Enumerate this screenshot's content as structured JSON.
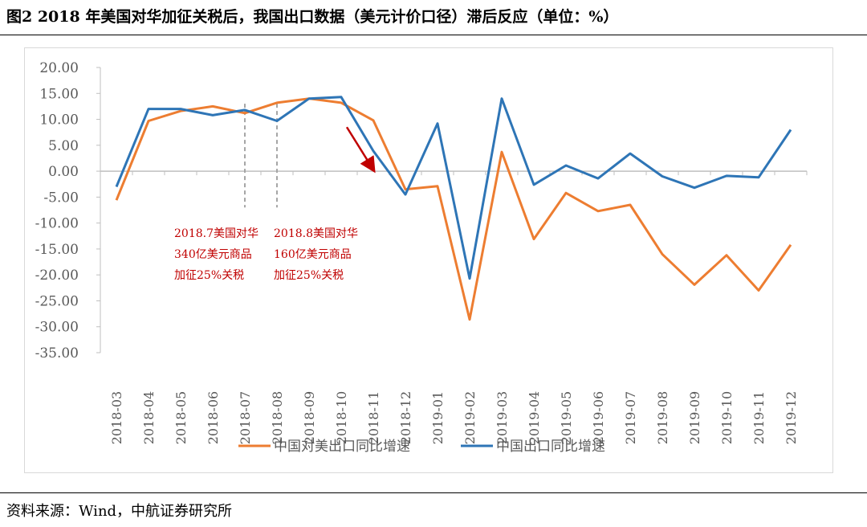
{
  "figure": {
    "title": "图2  2018 年美国对华加征关税后，我国出口数据（美元计价口径）滞后反应（单位：%）",
    "source": "资料来源：Wind，中航证券研究所"
  },
  "chart_data": {
    "type": "line",
    "categories": [
      "2018-03",
      "2018-04",
      "2018-05",
      "2018-06",
      "2018-07",
      "2018-08",
      "2018-09",
      "2018-10",
      "2018-11",
      "2018-12",
      "2019-01",
      "2019-02",
      "2019-03",
      "2019-04",
      "2019-05",
      "2019-06",
      "2019-07",
      "2019-08",
      "2019-09",
      "2019-10",
      "2019-11",
      "2019-12"
    ],
    "series": [
      {
        "name": "中国对美出口同比增速",
        "color": "#ED7D31",
        "values": [
          -5.6,
          9.7,
          11.6,
          12.5,
          11.2,
          13.2,
          14.0,
          13.2,
          9.8,
          -3.5,
          -2.9,
          -28.6,
          3.7,
          -13.1,
          -4.2,
          -7.7,
          -6.5,
          -16.0,
          -21.9,
          -16.2,
          -23.0,
          -14.2
        ]
      },
      {
        "name": "中国出口同比增速",
        "color": "#2E75B6",
        "values": [
          -3.0,
          12.0,
          12.0,
          10.8,
          11.8,
          9.7,
          14.0,
          14.3,
          3.9,
          -4.5,
          9.2,
          -20.7,
          14.0,
          -2.6,
          1.1,
          -1.4,
          3.4,
          -1.0,
          -3.2,
          -0.9,
          -1.2,
          8.0
        ]
      }
    ],
    "ylim": [
      -35,
      20
    ],
    "ytick_step": 5,
    "ytick_labels": [
      "20.00",
      "15.00",
      "10.00",
      "5.00",
      "0.00",
      "-5.00",
      "-10.00",
      "-15.00",
      "-20.00",
      "-25.00",
      "-30.00",
      "-35.00"
    ],
    "grid": false,
    "legend_position": "bottom",
    "annotations": [
      {
        "category": "2018-07",
        "lines": [
          "2018.7美国对华",
          "340亿美元商品",
          "加征25%关税"
        ]
      },
      {
        "category": "2018-08",
        "lines": [
          "2018.8美国对华",
          "160亿美元商品",
          "加征25%关税"
        ]
      }
    ],
    "arrow": {
      "from_category": "2018-10",
      "from_value": 8.5,
      "to_category": "2018-11",
      "to_value": 0.3,
      "color": "#C00000"
    },
    "annotation_color": "#C00000"
  }
}
